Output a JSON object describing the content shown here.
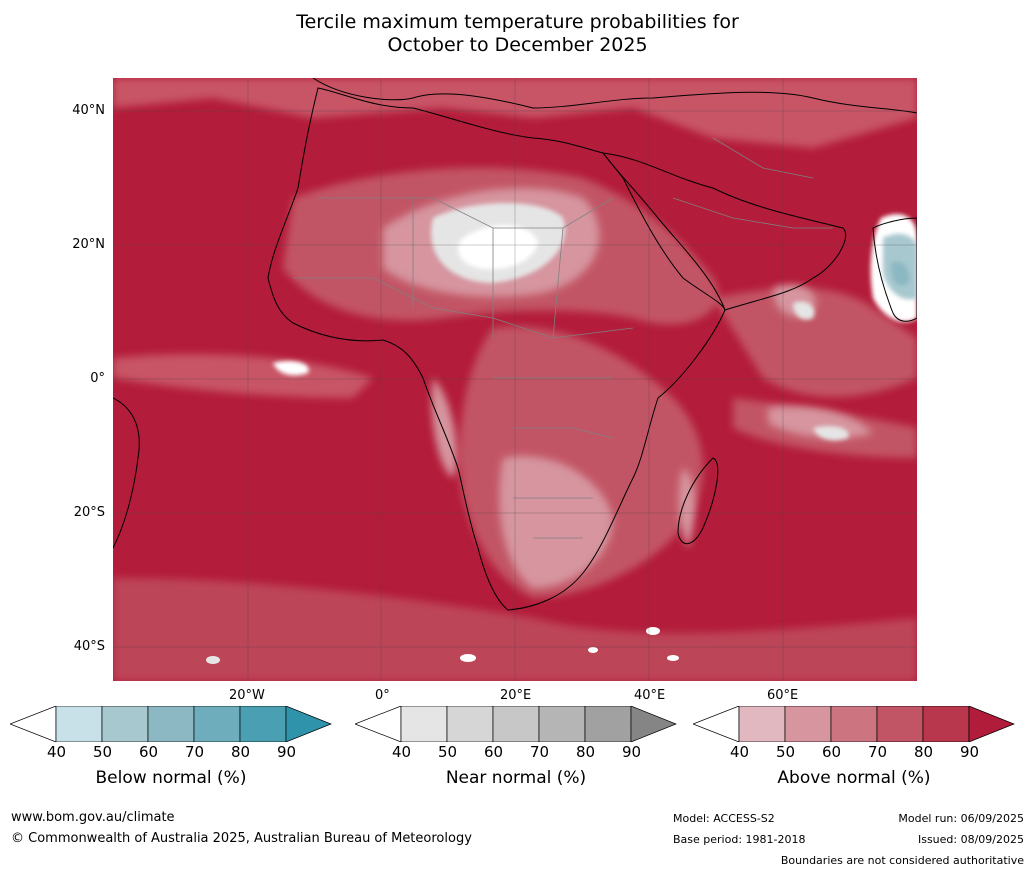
{
  "title_line1": "Tercile maximum temperature probabilities for",
  "title_line2": "October to December 2025",
  "latitude_labels": [
    "40°N",
    "20°N",
    "0°",
    "20°S",
    "40°S"
  ],
  "longitude_labels": [
    "20°W",
    "0°",
    "20°E",
    "40°E",
    "60°E"
  ],
  "legends": [
    {
      "title": "Below normal (%)",
      "ticks": [
        "40",
        "50",
        "60",
        "70",
        "80",
        "90"
      ],
      "colors": [
        "#ffffff",
        "#c8e1e8",
        "#a8c8cf",
        "#8bb8c3",
        "#6eaebc",
        "#4aa0b2",
        "#2f93ab"
      ]
    },
    {
      "title": "Near normal (%)",
      "ticks": [
        "40",
        "50",
        "60",
        "70",
        "80",
        "90"
      ],
      "colors": [
        "#ffffff",
        "#e5e5e5",
        "#d6d6d6",
        "#c7c7c7",
        "#b5b5b5",
        "#a1a1a1",
        "#858585"
      ]
    },
    {
      "title": "Above normal (%)",
      "ticks": [
        "40",
        "50",
        "60",
        "70",
        "80",
        "90"
      ],
      "colors": [
        "#ffffff",
        "#e2b8c0",
        "#d6959f",
        "#cc7580",
        "#c25565",
        "#b8374c",
        "#b01c3a"
      ]
    }
  ],
  "footer": {
    "website": "www.bom.gov.au/climate",
    "copyright": "© Commonwealth of Australia 2025, Australian Bureau of Meteorology",
    "model": "Model: ACCESS-S2",
    "base_period": "Base period: 1981-2018",
    "model_run": "Model run: 06/09/2025",
    "issued": "Issued: 08/09/2025",
    "disclaimer": "Boundaries are not considered authoritative"
  }
}
